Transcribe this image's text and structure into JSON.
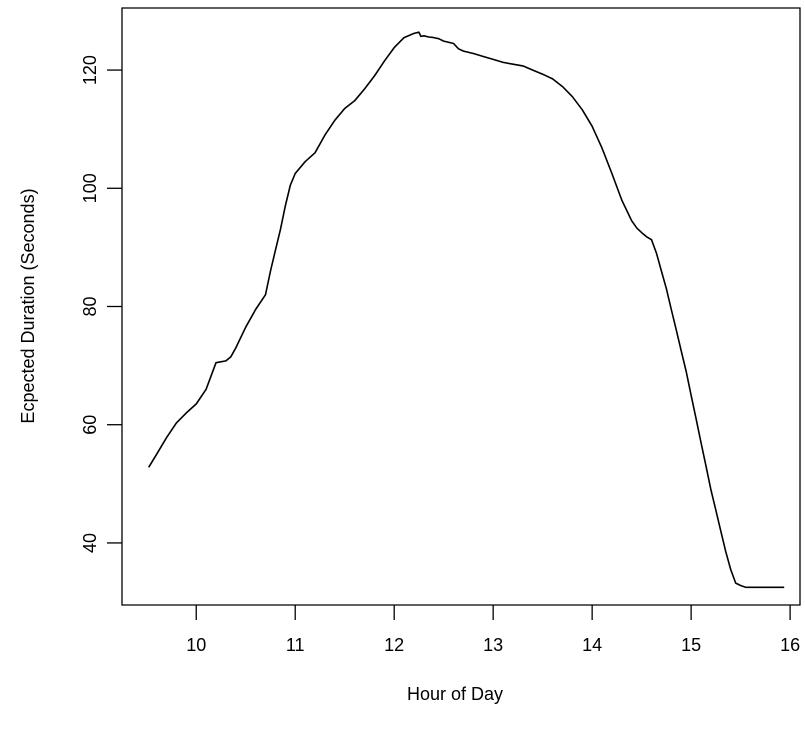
{
  "chart_data": {
    "type": "line",
    "title": "",
    "xlabel": "Hour of Day",
    "ylabel": "Ecpected Duration (Seconds)",
    "xlim": [
      9.25,
      16.1
    ],
    "ylim": [
      29.5,
      130.5
    ],
    "x_ticks": [
      10,
      11,
      12,
      13,
      14,
      15,
      16
    ],
    "y_ticks": [
      40,
      60,
      80,
      100,
      120
    ],
    "grid": false,
    "legend": "none",
    "series": [
      {
        "x": [
          9.52,
          9.6,
          9.7,
          9.8,
          9.9,
          10.0,
          10.1,
          10.2,
          10.3,
          10.35,
          10.4,
          10.5,
          10.6,
          10.7,
          10.75,
          10.8,
          10.85,
          10.9,
          10.95,
          11.0,
          11.1,
          11.2,
          11.3,
          11.4,
          11.5,
          11.6,
          11.7,
          11.8,
          11.9,
          12.0,
          12.1,
          12.2,
          12.25,
          12.27,
          12.3,
          12.35,
          12.4,
          12.45,
          12.5,
          12.6,
          12.65,
          12.7,
          12.8,
          12.9,
          13.0,
          13.1,
          13.2,
          13.3,
          13.4,
          13.5,
          13.6,
          13.7,
          13.8,
          13.9,
          14.0,
          14.1,
          14.2,
          14.3,
          14.4,
          14.45,
          14.5,
          14.55,
          14.6,
          14.65,
          14.7,
          14.75,
          14.8,
          14.85,
          14.9,
          14.95,
          15.0,
          15.05,
          15.1,
          15.15,
          15.2,
          15.25,
          15.3,
          15.35,
          15.4,
          15.45,
          15.5,
          15.55,
          15.6,
          15.65,
          15.7,
          15.75,
          15.8,
          15.85,
          15.9,
          15.94
        ],
        "y": [
          52.8,
          55.0,
          57.8,
          60.3,
          62.0,
          63.5,
          66.0,
          70.5,
          70.8,
          71.5,
          73.0,
          76.5,
          79.5,
          82.0,
          86.0,
          89.5,
          93.0,
          97.0,
          100.5,
          102.5,
          104.5,
          106.0,
          109.0,
          111.5,
          113.5,
          114.8,
          116.8,
          119.0,
          121.5,
          123.8,
          125.5,
          126.2,
          126.4,
          125.7,
          125.8,
          125.6,
          125.5,
          125.3,
          124.9,
          124.5,
          123.6,
          123.2,
          122.8,
          122.3,
          121.8,
          121.3,
          121.0,
          120.7,
          120.0,
          119.3,
          118.5,
          117.2,
          115.5,
          113.3,
          110.5,
          106.8,
          102.5,
          98.0,
          94.5,
          93.3,
          92.5,
          91.8,
          91.3,
          89.0,
          86.0,
          83.0,
          79.5,
          76.0,
          72.5,
          69.0,
          65.0,
          61.0,
          57.0,
          53.0,
          49.0,
          45.5,
          42.0,
          38.5,
          35.5,
          33.2,
          32.8,
          32.5,
          32.5,
          32.5,
          32.5,
          32.5,
          32.5,
          32.5,
          32.5,
          32.5
        ]
      }
    ]
  }
}
